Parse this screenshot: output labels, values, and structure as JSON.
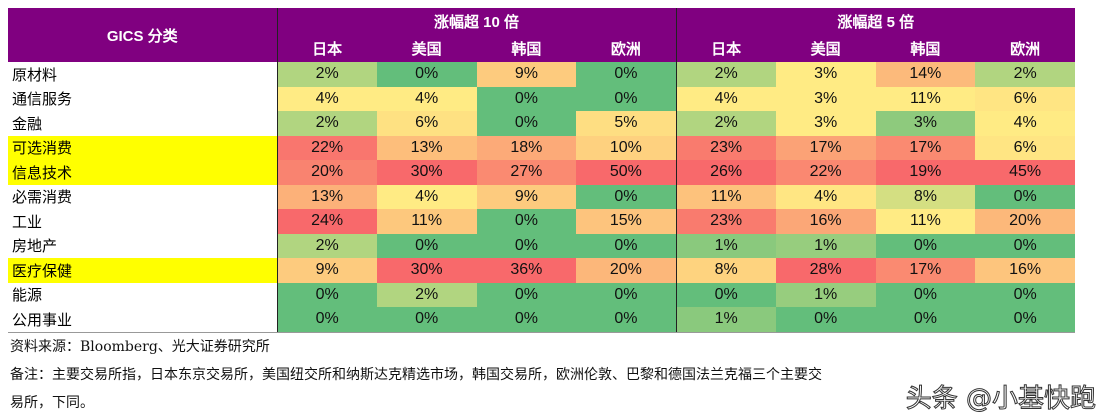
{
  "chart_data": {
    "type": "heatmap",
    "row_header": "GICS 分类",
    "groups": [
      {
        "label": "涨幅超 10 倍",
        "columns": [
          "日本",
          "美国",
          "韩国",
          "欧洲"
        ]
      },
      {
        "label": "涨幅超 5 倍",
        "columns": [
          "日本",
          "美国",
          "韩国",
          "欧洲"
        ]
      }
    ],
    "rows": [
      {
        "label": "原材料",
        "highlight": false,
        "values": [
          "2%",
          "0%",
          "9%",
          "0%",
          "2%",
          "3%",
          "14%",
          "2%"
        ]
      },
      {
        "label": "通信服务",
        "highlight": false,
        "values": [
          "4%",
          "4%",
          "0%",
          "0%",
          "4%",
          "3%",
          "11%",
          "6%"
        ]
      },
      {
        "label": "金融",
        "highlight": false,
        "values": [
          "2%",
          "6%",
          "0%",
          "5%",
          "2%",
          "3%",
          "3%",
          "4%"
        ]
      },
      {
        "label": "可选消费",
        "highlight": true,
        "values": [
          "22%",
          "13%",
          "18%",
          "10%",
          "23%",
          "17%",
          "17%",
          "6%"
        ]
      },
      {
        "label": "信息技术",
        "highlight": true,
        "values": [
          "20%",
          "30%",
          "27%",
          "50%",
          "26%",
          "22%",
          "19%",
          "45%"
        ]
      },
      {
        "label": "必需消费",
        "highlight": false,
        "values": [
          "13%",
          "4%",
          "9%",
          "0%",
          "11%",
          "4%",
          "8%",
          "0%"
        ]
      },
      {
        "label": "工业",
        "highlight": false,
        "values": [
          "24%",
          "11%",
          "0%",
          "15%",
          "23%",
          "16%",
          "11%",
          "20%"
        ]
      },
      {
        "label": "房地产",
        "highlight": false,
        "values": [
          "2%",
          "0%",
          "0%",
          "0%",
          "1%",
          "1%",
          "0%",
          "0%"
        ]
      },
      {
        "label": "医疗保健",
        "highlight": true,
        "values": [
          "9%",
          "30%",
          "36%",
          "20%",
          "8%",
          "28%",
          "17%",
          "16%"
        ]
      },
      {
        "label": "能源",
        "highlight": false,
        "values": [
          "0%",
          "2%",
          "0%",
          "0%",
          "0%",
          "1%",
          "0%",
          "0%"
        ]
      },
      {
        "label": "公用事业",
        "highlight": false,
        "values": [
          "0%",
          "0%",
          "0%",
          "0%",
          "1%",
          "0%",
          "0%",
          "0%"
        ]
      }
    ],
    "color_scale": {
      "low": "#63BE7B",
      "mid": "#FFEB84",
      "high": "#F8696B"
    },
    "header_color": "#800080",
    "highlight_color": "#FFFF00"
  },
  "footer": {
    "source": "资料来源：Bloomberg、光大证券研究所",
    "note_line1": "备注：主要交易所指，日本东京交易所，美国纽交所和纳斯达克精选市场，韩国交易所，欧洲伦敦、巴黎和德国法兰克福三个主要交",
    "note_line2": "易所，下同。"
  },
  "watermark": "头条 @小基快跑"
}
